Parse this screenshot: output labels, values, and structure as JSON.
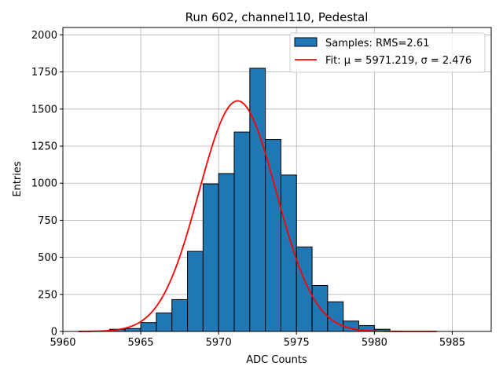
{
  "chart_data": {
    "type": "bar",
    "title": "Run 602, channel110, Pedestal",
    "xlabel": "ADC Counts",
    "ylabel": "Entries",
    "xlim": [
      5960,
      5987.5
    ],
    "ylim": [
      0,
      2050
    ],
    "xticks": [
      5960,
      5965,
      5970,
      5975,
      5980,
      5985
    ],
    "yticks": [
      0,
      250,
      500,
      750,
      1000,
      1250,
      1500,
      1750,
      2000
    ],
    "ytick_labels": [
      "0",
      "250",
      "500",
      "750",
      "1000",
      "1250",
      "1500",
      "1750",
      "2000"
    ],
    "grid": true,
    "legend_placement": "top-right",
    "bin_width": 1,
    "series": [
      {
        "name": "Samples: RMS=2.61",
        "kind": "histogram",
        "color": "#1f77b4",
        "edgecolor": "#000000",
        "bin_left_edges": [
          5963,
          5964,
          5965,
          5966,
          5967,
          5968,
          5969,
          5970,
          5971,
          5972,
          5973,
          5974,
          5975,
          5976,
          5977,
          5978,
          5979,
          5980
        ],
        "values": [
          15,
          20,
          60,
          125,
          215,
          540,
          995,
          1065,
          1345,
          1775,
          1295,
          1055,
          570,
          310,
          200,
          70,
          40,
          15
        ]
      },
      {
        "name": "Fit: μ = 5971.219, σ = 2.476",
        "kind": "gaussian",
        "color": "#ff0000",
        "mu": 5971.219,
        "sigma": 2.476,
        "amplitude": 1555,
        "x_range": [
          5961,
          5984
        ]
      }
    ]
  }
}
